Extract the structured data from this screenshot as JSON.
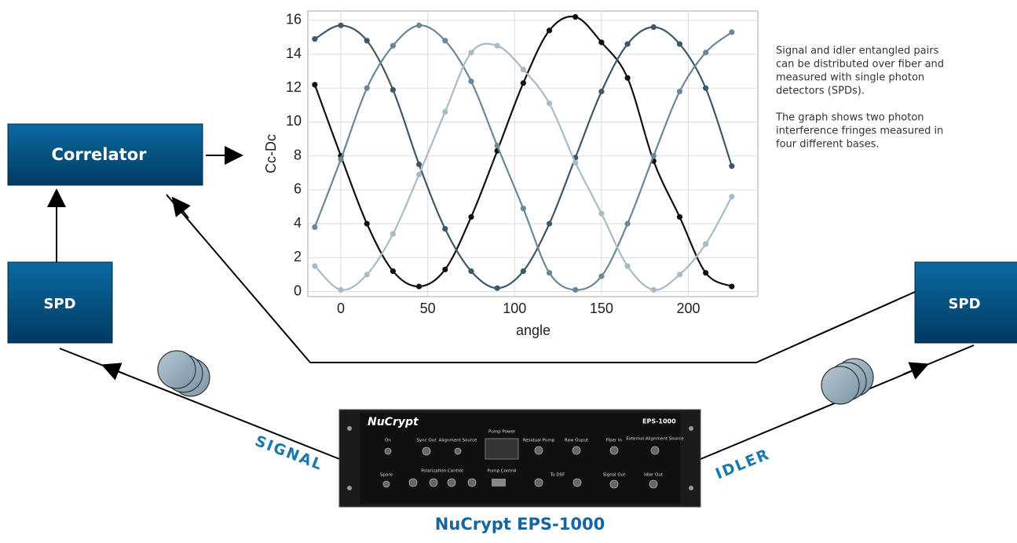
{
  "chart_data": {
    "type": "line",
    "x_label": "angle",
    "y_label": "Cc-Dc",
    "x": [
      -15,
      0,
      15,
      30,
      45,
      60,
      75,
      90,
      105,
      120,
      135,
      150,
      165,
      180,
      195,
      210,
      225
    ],
    "xlim": [
      -19,
      240
    ],
    "xticks": [
      0,
      50,
      100,
      150,
      200
    ],
    "ylim": [
      -0.3,
      16.55
    ],
    "yticks": [
      0,
      2,
      4,
      6,
      8,
      10,
      12,
      14,
      16
    ],
    "grid": true,
    "series": [
      {
        "color": "#111111",
        "values": [
          12.2,
          8.0,
          4.0,
          1.2,
          0.3,
          1.3,
          4.4,
          8.3,
          12.3,
          15.4,
          16.2,
          14.7,
          12.6,
          7.7,
          4.4,
          1.1,
          0.3
        ]
      },
      {
        "color": "#3e5868",
        "values": [
          14.9,
          15.7,
          14.8,
          11.9,
          7.5,
          3.7,
          1.2,
          0.2,
          1.2,
          4.0,
          7.9,
          11.8,
          14.6,
          15.6,
          14.6,
          12.0,
          7.4
        ]
      },
      {
        "color": "#6a8799",
        "values": [
          3.8,
          7.8,
          12.0,
          14.5,
          15.7,
          14.8,
          12.4,
          8.6,
          4.9,
          1.1,
          0.1,
          0.9,
          4.0,
          8.0,
          11.8,
          14.1,
          15.3
        ]
      },
      {
        "color": "#a7bbc7",
        "values": [
          1.5,
          0.1,
          1.0,
          3.4,
          6.9,
          10.6,
          14.1,
          14.5,
          13.1,
          11.1,
          7.6,
          4.6,
          1.5,
          0.1,
          1.0,
          2.8,
          5.6
        ]
      }
    ]
  },
  "diagram": {
    "correlator": "Correlator",
    "spd_left": "SPD",
    "spd_right": "SPD",
    "signal": "SIGNAL",
    "idler": "IDLER",
    "caption": "NuCrypt EPS-1000",
    "description": [
      "Signal and idler entangled pairs",
      "can be distributed over fiber and",
      "measured with single photon",
      "detectors (SPDs).",
      "",
      "The graph shows two photon",
      "interference fringes measured in",
      "four different bases."
    ],
    "device": {
      "brand": "NuCrypt",
      "model": "EPS-1000",
      "labels": [
        "On",
        "Sync Out",
        "Alignment Source",
        "Pump Power",
        "Residual Pump",
        "Raw Ouput",
        "Fiber In",
        "External Alignment Source",
        "Spare",
        "Polarization Control",
        "Pump Control",
        "To DSF",
        "Signal Out",
        "Idler Out"
      ]
    }
  }
}
